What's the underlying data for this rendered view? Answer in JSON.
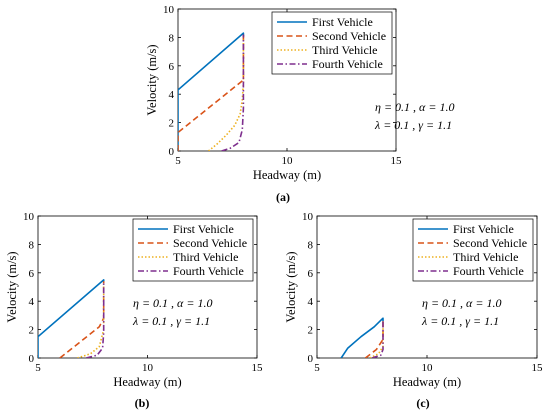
{
  "chart_data": [
    {
      "type": "line",
      "panel_label": "(a)",
      "xlabel": "Headway (m)",
      "ylabel": "Velocity (m/s)",
      "xlim": [
        5,
        15
      ],
      "ylim": [
        0,
        10
      ],
      "xticks": [
        "5",
        "10",
        "15"
      ],
      "yticks": [
        "0",
        "2",
        "4",
        "6",
        "8",
        "10"
      ],
      "legend_position": "top-right",
      "annotation_line1": "η = 0.1 , α = 1.0",
      "annotation_line2": "λ = 0.1 , γ = 1.1",
      "series": [
        {
          "name": "First Vehicle",
          "color": "#0072BD",
          "dash": "solid",
          "points": [
            [
              5.0,
              0.0
            ],
            [
              5.0,
              4.3
            ],
            [
              8.0,
              8.3
            ],
            [
              8.0,
              8.1
            ]
          ]
        },
        {
          "name": "Second Vehicle",
          "color": "#D95319",
          "dash": "dashed",
          "points": [
            [
              5.0,
              0.0
            ],
            [
              5.0,
              1.3
            ],
            [
              8.0,
              5.0
            ],
            [
              8.0,
              8.2
            ]
          ]
        },
        {
          "name": "Third Vehicle",
          "color": "#EDB120",
          "dash": "dotted",
          "points": [
            [
              6.4,
              0.0
            ],
            [
              6.8,
              0.5
            ],
            [
              7.2,
              1.1
            ],
            [
              7.6,
              1.8
            ],
            [
              7.85,
              2.6
            ],
            [
              7.95,
              3.6
            ],
            [
              8.0,
              4.8
            ],
            [
              8.0,
              8.2
            ]
          ]
        },
        {
          "name": "Fourth Vehicle",
          "color": "#7E2F8E",
          "dash": "dashdot",
          "points": [
            [
              7.0,
              0.0
            ],
            [
              7.4,
              0.2
            ],
            [
              7.8,
              0.6
            ],
            [
              7.95,
              1.5
            ],
            [
              8.0,
              3.0
            ],
            [
              8.0,
              8.2
            ]
          ]
        }
      ]
    },
    {
      "type": "line",
      "panel_label": "(b)",
      "xlabel": "Headway (m)",
      "ylabel": "Velocity (m/s)",
      "xlim": [
        5,
        15
      ],
      "ylim": [
        0,
        10
      ],
      "xticks": [
        "5",
        "10",
        "15"
      ],
      "yticks": [
        "0",
        "2",
        "4",
        "6",
        "8",
        "10"
      ],
      "legend_position": "top-right",
      "annotation_line1": "η = 0.1 , α = 1.0",
      "annotation_line2": "λ = 0.1 , γ = 1.1",
      "series": [
        {
          "name": "First Vehicle",
          "color": "#0072BD",
          "dash": "solid",
          "points": [
            [
              5.0,
              0.0
            ],
            [
              5.0,
              1.5
            ],
            [
              8.0,
              5.5
            ],
            [
              8.0,
              5.3
            ]
          ]
        },
        {
          "name": "Second Vehicle",
          "color": "#D95319",
          "dash": "dashed",
          "points": [
            [
              6.0,
              0.0
            ],
            [
              7.8,
              2.2
            ],
            [
              8.0,
              2.8
            ],
            [
              8.0,
              5.4
            ]
          ]
        },
        {
          "name": "Third Vehicle",
          "color": "#EDB120",
          "dash": "dotted",
          "points": [
            [
              6.8,
              0.0
            ],
            [
              7.4,
              0.3
            ],
            [
              7.8,
              0.8
            ],
            [
              8.0,
              2.0
            ],
            [
              8.0,
              5.4
            ]
          ]
        },
        {
          "name": "Fourth Vehicle",
          "color": "#7E2F8E",
          "dash": "dashdot",
          "points": [
            [
              7.2,
              0.0
            ],
            [
              7.7,
              0.2
            ],
            [
              7.95,
              0.7
            ],
            [
              8.0,
              1.8
            ],
            [
              8.0,
              5.4
            ]
          ]
        }
      ]
    },
    {
      "type": "line",
      "panel_label": "(c)",
      "xlabel": "Headway (m)",
      "ylabel": "Velocity (m/s)",
      "xlim": [
        5,
        15
      ],
      "ylim": [
        0,
        10
      ],
      "xticks": [
        "5",
        "10",
        "15"
      ],
      "yticks": [
        "0",
        "2",
        "4",
        "6",
        "8",
        "10"
      ],
      "legend_position": "top-right",
      "annotation_line1": "η = 0.1 , α = 1.0",
      "annotation_line2": "λ = 0.1 , γ = 1.1",
      "series": [
        {
          "name": "First Vehicle",
          "color": "#0072BD",
          "dash": "solid",
          "points": [
            [
              6.1,
              0.0
            ],
            [
              6.4,
              0.7
            ],
            [
              7.0,
              1.5
            ],
            [
              7.6,
              2.2
            ],
            [
              8.0,
              2.8
            ],
            [
              8.0,
              2.6
            ]
          ]
        },
        {
          "name": "Second Vehicle",
          "color": "#D95319",
          "dash": "dashed",
          "points": [
            [
              7.2,
              0.0
            ],
            [
              7.7,
              0.6
            ],
            [
              8.0,
              1.3
            ],
            [
              8.0,
              2.7
            ]
          ]
        },
        {
          "name": "Third Vehicle",
          "color": "#EDB120",
          "dash": "dotted",
          "points": [
            [
              7.4,
              0.0
            ],
            [
              7.8,
              0.3
            ],
            [
              8.0,
              0.8
            ],
            [
              8.0,
              2.7
            ]
          ]
        },
        {
          "name": "Fourth Vehicle",
          "color": "#7E2F8E",
          "dash": "dashdot",
          "points": [
            [
              7.5,
              0.0
            ],
            [
              7.9,
              0.2
            ],
            [
              8.0,
              0.6
            ],
            [
              8.0,
              2.7
            ]
          ]
        }
      ]
    }
  ]
}
